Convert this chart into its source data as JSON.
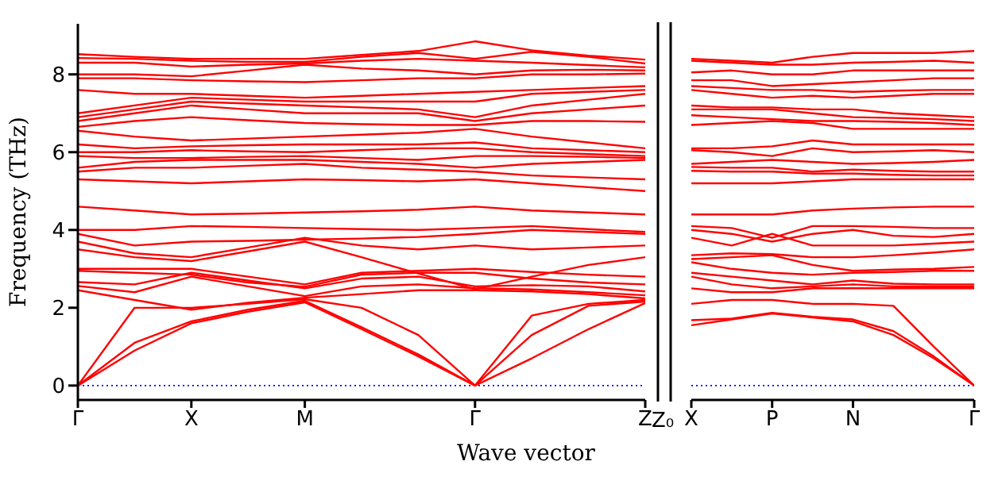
{
  "chart_data": [
    {
      "type": "line",
      "xlabel": "Wave vector",
      "ylabel": "Frequency (THz)",
      "annotations": [
        "Z₀"
      ],
      "categories": [
        "Γ",
        null,
        "X",
        null,
        "M",
        null,
        null,
        "Γ",
        null,
        null,
        "Z"
      ],
      "ylim": [
        -0.37,
        9.3
      ],
      "yticks": [
        0,
        2,
        4,
        6,
        8
      ],
      "marker": "none",
      "line_style": "solid",
      "ref_lines": [
        {
          "axis": "y",
          "value": 0,
          "color": "#0000ff",
          "line_style": "dotted"
        }
      ],
      "series": [
        {
          "color": "#ff0000",
          "values": [
            0,
            0.9,
            1.6,
            1.9,
            2.14,
            1.45,
            0.75,
            0,
            0.7,
            1.45,
            2.12
          ]
        },
        {
          "color": "#ff0000",
          "values": [
            0,
            1.1,
            1.65,
            1.95,
            2.18,
            1.5,
            0.8,
            0,
            1.3,
            2.05,
            2.16
          ]
        },
        {
          "color": "#ff0000",
          "values": [
            0,
            2.0,
            2.0,
            2.1,
            2.22,
            2.0,
            1.3,
            0,
            1.8,
            2.1,
            2.2
          ]
        },
        {
          "color": "#ff0000",
          "values": [
            2.45,
            2.2,
            1.95,
            2.13,
            2.26,
            2.35,
            2.45,
            2.45,
            2.42,
            2.35,
            2.24
          ]
        },
        {
          "color": "#ff0000",
          "values": [
            2.56,
            2.4,
            2.8,
            2.55,
            2.3,
            2.55,
            2.6,
            2.5,
            2.47,
            2.4,
            2.32
          ]
        },
        {
          "color": "#ff0000",
          "values": [
            2.66,
            2.6,
            2.9,
            2.7,
            2.5,
            2.75,
            2.8,
            2.55,
            2.58,
            2.55,
            2.42
          ]
        },
        {
          "color": "#ff0000",
          "values": [
            2.95,
            2.9,
            2.85,
            2.65,
            2.54,
            2.85,
            2.9,
            2.9,
            2.75,
            2.65,
            2.6
          ]
        },
        {
          "color": "#ff0000",
          "values": [
            3.0,
            3.0,
            3.0,
            2.8,
            2.6,
            2.9,
            2.95,
            3.0,
            2.92,
            2.85,
            2.8
          ]
        },
        {
          "color": "#ff0000",
          "values": [
            3.5,
            3.3,
            3.2,
            3.45,
            3.7,
            3.3,
            2.88,
            2.48,
            2.8,
            3.1,
            3.3
          ]
        },
        {
          "color": "#ff0000",
          "values": [
            3.7,
            3.4,
            3.3,
            3.55,
            3.8,
            3.6,
            3.5,
            3.6,
            3.5,
            3.55,
            3.6
          ]
        },
        {
          "color": "#ff0000",
          "values": [
            3.9,
            3.6,
            3.7,
            3.72,
            3.75,
            3.78,
            3.82,
            3.9,
            4.0,
            3.95,
            3.9
          ]
        },
        {
          "color": "#ff0000",
          "values": [
            4.0,
            4.0,
            4.1,
            4.08,
            4.05,
            4.02,
            4.0,
            4.05,
            4.1,
            4.02,
            3.95
          ]
        },
        {
          "color": "#ff0000",
          "values": [
            4.6,
            4.5,
            4.4,
            4.42,
            4.45,
            4.48,
            4.52,
            4.6,
            4.5,
            4.45,
            4.4
          ]
        },
        {
          "color": "#ff0000",
          "values": [
            5.3,
            5.25,
            5.2,
            5.25,
            5.3,
            5.28,
            5.25,
            5.3,
            5.2,
            5.1,
            5.0
          ]
        },
        {
          "color": "#ff0000",
          "values": [
            5.5,
            5.6,
            5.6,
            5.65,
            5.7,
            5.6,
            5.55,
            5.5,
            5.4,
            5.35,
            5.3
          ]
        },
        {
          "color": "#ff0000",
          "values": [
            5.6,
            5.75,
            5.8,
            5.8,
            5.8,
            5.75,
            5.7,
            5.6,
            5.7,
            5.75,
            5.8
          ]
        },
        {
          "color": "#ff0000",
          "values": [
            5.9,
            5.85,
            5.85,
            5.88,
            5.9,
            5.85,
            5.8,
            5.9,
            5.9,
            5.88,
            5.85
          ]
        },
        {
          "color": "#ff0000",
          "values": [
            6.0,
            6.0,
            6.05,
            6.02,
            6.0,
            6.05,
            6.1,
            6.1,
            6.0,
            5.95,
            5.9
          ]
        },
        {
          "color": "#ff0000",
          "values": [
            6.2,
            6.1,
            6.15,
            6.18,
            6.2,
            6.2,
            6.2,
            6.25,
            6.1,
            6.05,
            6.0
          ]
        },
        {
          "color": "#ff0000",
          "values": [
            6.55,
            6.4,
            6.3,
            6.35,
            6.4,
            6.45,
            6.5,
            6.6,
            6.4,
            6.25,
            6.1
          ]
        },
        {
          "color": "#ff0000",
          "values": [
            6.65,
            6.8,
            6.9,
            6.82,
            6.75,
            6.72,
            6.7,
            6.7,
            6.8,
            6.8,
            6.78
          ]
        },
        {
          "color": "#ff0000",
          "values": [
            6.8,
            7.0,
            7.2,
            7.1,
            7.0,
            7.0,
            7.0,
            6.8,
            7.0,
            7.1,
            7.2
          ]
        },
        {
          "color": "#ff0000",
          "values": [
            6.9,
            7.1,
            7.3,
            7.25,
            7.2,
            7.15,
            7.1,
            6.9,
            7.2,
            7.35,
            7.5
          ]
        },
        {
          "color": "#ff0000",
          "values": [
            7.0,
            7.2,
            7.4,
            7.35,
            7.3,
            7.3,
            7.3,
            7.3,
            7.5,
            7.55,
            7.6
          ]
        },
        {
          "color": "#ff0000",
          "values": [
            7.6,
            7.5,
            7.5,
            7.45,
            7.4,
            7.45,
            7.5,
            7.55,
            7.6,
            7.65,
            7.7
          ]
        },
        {
          "color": "#ff0000",
          "values": [
            7.9,
            7.9,
            7.85,
            7.82,
            7.8,
            7.85,
            7.9,
            7.9,
            8.0,
            8.0,
            8.02
          ]
        },
        {
          "color": "#ff0000",
          "values": [
            8.0,
            8.0,
            7.95,
            8.1,
            8.25,
            8.15,
            8.1,
            8.0,
            8.1,
            8.12,
            8.1
          ]
        },
        {
          "color": "#ff0000",
          "values": [
            8.3,
            8.3,
            8.2,
            8.25,
            8.28,
            8.35,
            8.4,
            8.35,
            8.3,
            8.24,
            8.18
          ]
        },
        {
          "color": "#ff0000",
          "values": [
            8.42,
            8.4,
            8.35,
            8.32,
            8.32,
            8.45,
            8.55,
            8.4,
            8.58,
            8.45,
            8.28
          ]
        },
        {
          "color": "#ff0000",
          "values": [
            8.52,
            8.45,
            8.4,
            8.4,
            8.4,
            8.5,
            8.6,
            8.85,
            8.62,
            8.48,
            8.38
          ]
        }
      ]
    },
    {
      "type": "line",
      "categories": [
        "X",
        null,
        "P",
        null,
        "N",
        null,
        null,
        "Γ"
      ],
      "ylim": [
        -0.37,
        9.3
      ],
      "yticks": [
        0,
        2,
        4,
        6,
        8
      ],
      "tick_labels": "x",
      "marker": "none",
      "line_style": "solid",
      "ref_lines": [
        {
          "axis": "y",
          "value": 0,
          "color": "#0000ff",
          "line_style": "dotted"
        }
      ],
      "series": [
        {
          "color": "#ff0000",
          "values": [
            1.55,
            1.7,
            1.85,
            1.75,
            1.65,
            1.3,
            0.7,
            0
          ]
        },
        {
          "color": "#ff0000",
          "values": [
            1.68,
            1.72,
            1.87,
            1.77,
            1.7,
            1.4,
            0.75,
            0
          ]
        },
        {
          "color": "#ff0000",
          "values": [
            2.1,
            2.2,
            2.2,
            2.1,
            2.1,
            2.05,
            1.0,
            0
          ]
        },
        {
          "color": "#ff0000",
          "values": [
            2.5,
            2.4,
            2.4,
            2.5,
            2.5,
            2.5,
            2.5,
            2.5
          ]
        },
        {
          "color": "#ff0000",
          "values": [
            2.8,
            2.6,
            2.5,
            2.55,
            2.6,
            2.55,
            2.55,
            2.55
          ]
        },
        {
          "color": "#ff0000",
          "values": [
            2.9,
            2.8,
            2.7,
            2.6,
            2.7,
            2.62,
            2.6,
            2.6
          ]
        },
        {
          "color": "#ff0000",
          "values": [
            3.17,
            3.0,
            2.9,
            2.85,
            2.9,
            2.92,
            2.95,
            2.95
          ]
        },
        {
          "color": "#ff0000",
          "values": [
            3.25,
            3.3,
            3.35,
            3.1,
            2.95,
            2.98,
            3.0,
            3.05
          ]
        },
        {
          "color": "#ff0000",
          "values": [
            3.35,
            3.4,
            3.38,
            3.3,
            3.3,
            3.35,
            3.42,
            3.5
          ]
        },
        {
          "color": "#ff0000",
          "values": [
            3.8,
            3.6,
            3.9,
            3.6,
            3.6,
            3.6,
            3.65,
            3.7
          ]
        },
        {
          "color": "#ff0000",
          "values": [
            4.0,
            3.9,
            3.7,
            3.9,
            4.0,
            3.85,
            3.82,
            3.9
          ]
        },
        {
          "color": "#ff0000",
          "values": [
            4.1,
            4.05,
            3.8,
            4.1,
            4.1,
            4.08,
            4.05,
            4.05
          ]
        },
        {
          "color": "#ff0000",
          "values": [
            4.4,
            4.4,
            4.4,
            4.5,
            4.55,
            4.58,
            4.6,
            4.6
          ]
        },
        {
          "color": "#ff0000",
          "values": [
            5.2,
            5.2,
            5.2,
            5.25,
            5.3,
            5.3,
            5.3,
            5.3
          ]
        },
        {
          "color": "#ff0000",
          "values": [
            5.52,
            5.5,
            5.5,
            5.45,
            5.45,
            5.42,
            5.4,
            5.4
          ]
        },
        {
          "color": "#ff0000",
          "values": [
            5.62,
            5.6,
            5.6,
            5.5,
            5.55,
            5.52,
            5.5,
            5.5
          ]
        },
        {
          "color": "#ff0000",
          "values": [
            5.7,
            5.75,
            5.8,
            5.75,
            5.7,
            5.72,
            5.75,
            5.8
          ]
        },
        {
          "color": "#ff0000",
          "values": [
            6.05,
            6.0,
            5.9,
            6.1,
            6.0,
            6.02,
            6.05,
            6.0
          ]
        },
        {
          "color": "#ff0000",
          "values": [
            6.1,
            6.1,
            6.15,
            6.3,
            6.2,
            6.2,
            6.2,
            6.2
          ]
        },
        {
          "color": "#ff0000",
          "values": [
            6.7,
            6.75,
            6.8,
            6.75,
            6.6,
            6.6,
            6.6,
            6.6
          ]
        },
        {
          "color": "#ff0000",
          "values": [
            6.95,
            6.9,
            6.85,
            6.8,
            6.8,
            6.78,
            6.75,
            6.7
          ]
        },
        {
          "color": "#ff0000",
          "values": [
            7.1,
            7.1,
            7.1,
            7.0,
            6.9,
            6.88,
            6.85,
            6.8
          ]
        },
        {
          "color": "#ff0000",
          "values": [
            7.2,
            7.15,
            7.15,
            7.1,
            7.1,
            7.0,
            6.95,
            6.9
          ]
        },
        {
          "color": "#ff0000",
          "values": [
            7.6,
            7.5,
            7.4,
            7.45,
            7.4,
            7.45,
            7.5,
            7.5
          ]
        },
        {
          "color": "#ff0000",
          "values": [
            7.7,
            7.65,
            7.6,
            7.6,
            7.55,
            7.58,
            7.6,
            7.6
          ]
        },
        {
          "color": "#ff0000",
          "values": [
            7.85,
            7.85,
            7.7,
            7.75,
            7.8,
            7.85,
            7.9,
            7.9
          ]
        },
        {
          "color": "#ff0000",
          "values": [
            8.05,
            8.1,
            8.0,
            8.0,
            8.1,
            8.1,
            8.1,
            8.1
          ]
        },
        {
          "color": "#ff0000",
          "values": [
            8.35,
            8.3,
            8.25,
            8.25,
            8.3,
            8.32,
            8.35,
            8.3
          ]
        },
        {
          "color": "#ff0000",
          "values": [
            8.4,
            8.35,
            8.3,
            8.45,
            8.55,
            8.55,
            8.55,
            8.6
          ]
        }
      ]
    }
  ]
}
